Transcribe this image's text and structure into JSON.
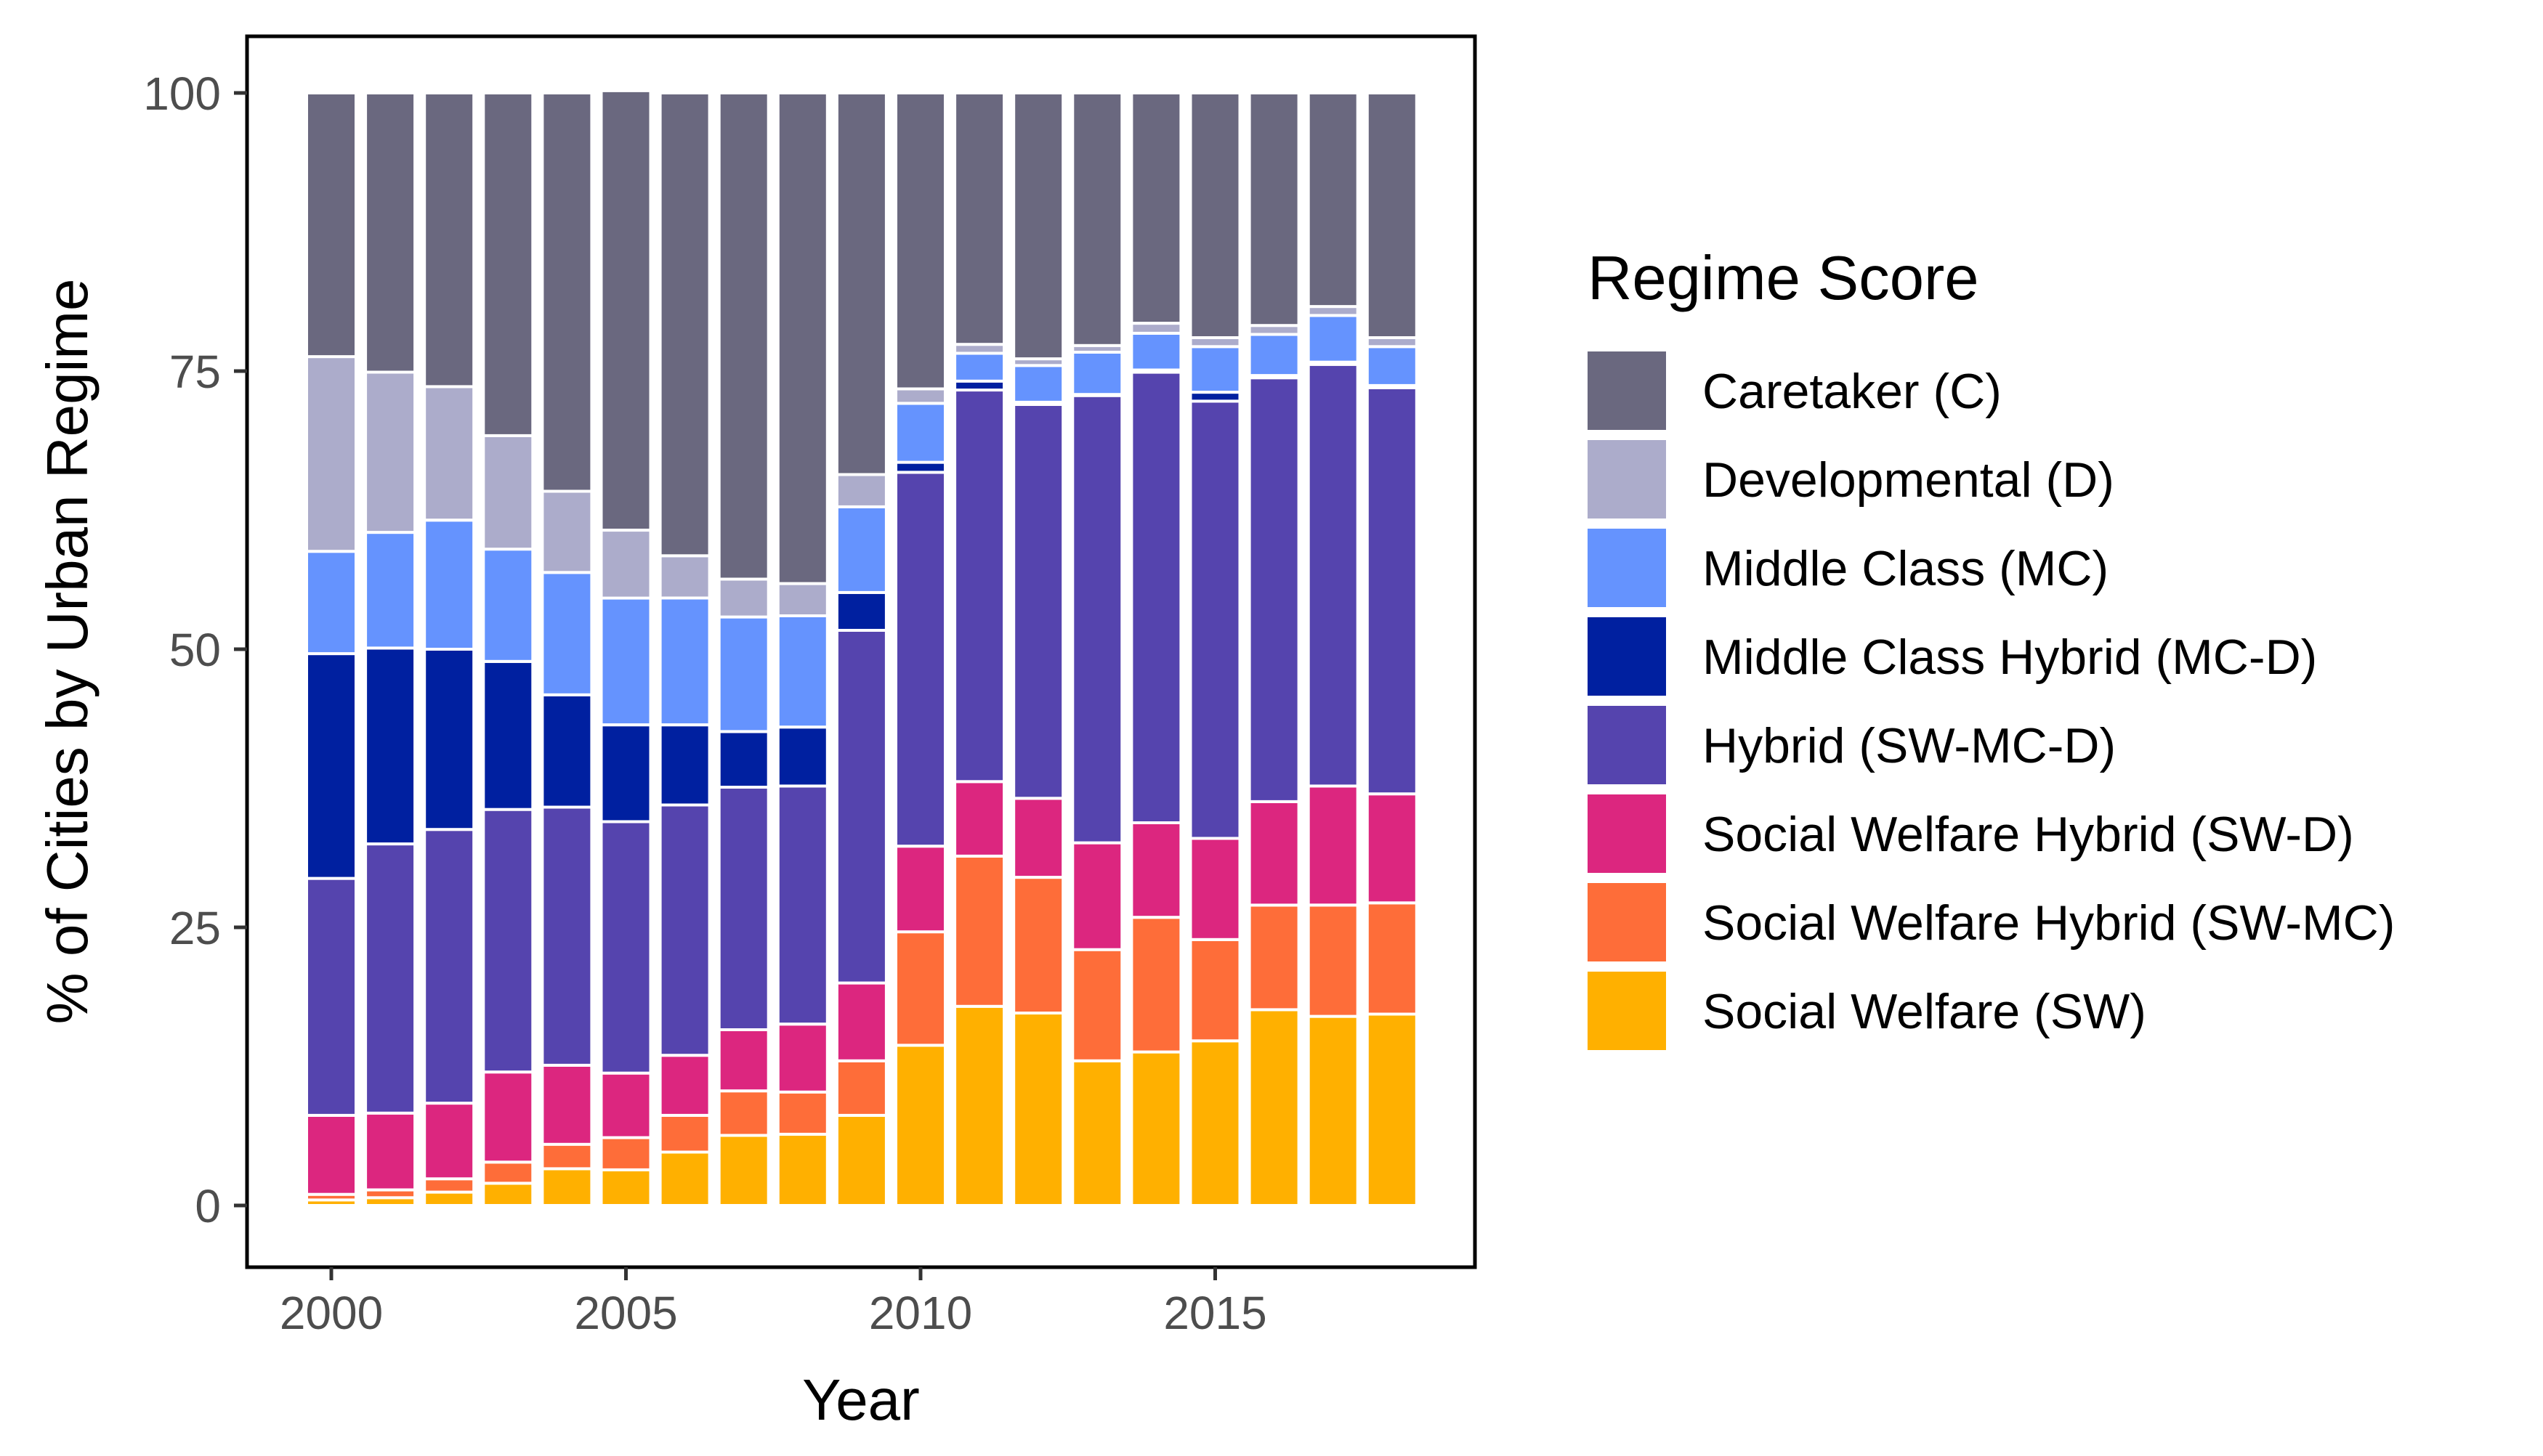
{
  "chart_data": {
    "type": "bar",
    "stacked": true,
    "xlabel": "Year",
    "ylabel": "% of Cities by Urban Regime",
    "ylim": [
      0,
      100
    ],
    "xlim": [
      1999.5,
      2018.5
    ],
    "y_ticks": [
      0,
      25,
      50,
      75,
      100
    ],
    "x_ticks": [
      2000,
      2005,
      2010,
      2015
    ],
    "y_tick_labels": [
      "0",
      "25",
      "50",
      "75",
      "100"
    ],
    "x_tick_labels": [
      "2000",
      "2005",
      "2010",
      "2015"
    ],
    "legend_title": "Regime Score",
    "legend_position": "right",
    "grid": false,
    "categories": [
      2000,
      2001,
      2002,
      2003,
      2004,
      2005,
      2006,
      2007,
      2008,
      2009,
      2010,
      2011,
      2012,
      2013,
      2014,
      2015,
      2016,
      2017,
      2018
    ],
    "series": [
      {
        "name": "Social Welfare (SW)",
        "color": "#FFB000",
        "values": [
          0.5,
          0.7,
          1.2,
          2.0,
          3.3,
          3.2,
          4.8,
          6.3,
          6.4,
          8.1,
          14.4,
          17.9,
          17.3,
          13.0,
          13.8,
          14.8,
          17.6,
          17.0,
          17.2
        ]
      },
      {
        "name": "Social Welfare Hybrid (SW-MC)",
        "color": "#FE6D39",
        "values": [
          0.5,
          0.7,
          1.2,
          1.9,
          2.2,
          2.9,
          3.3,
          4.0,
          3.8,
          4.9,
          10.2,
          13.5,
          12.2,
          10.0,
          12.1,
          9.1,
          9.4,
          10.0,
          10.0
        ]
      },
      {
        "name": "Social Welfare Hybrid (SW-D)",
        "color": "#DC267F",
        "values": [
          7.1,
          6.9,
          6.8,
          8.1,
          7.1,
          5.8,
          5.4,
          5.5,
          6.1,
          7.0,
          7.7,
          6.7,
          7.1,
          9.6,
          8.5,
          9.1,
          9.3,
          10.7,
          9.8
        ]
      },
      {
        "name": "Hybrid (SW-MC-D)",
        "color": "#5544AE",
        "values": [
          21.3,
          24.2,
          24.6,
          23.6,
          23.2,
          22.6,
          22.5,
          21.8,
          21.4,
          31.7,
          33.6,
          35.2,
          35.4,
          40.2,
          40.5,
          39.3,
          38.1,
          37.9,
          36.5
        ]
      },
      {
        "name": "Middle Class Hybrid (MC-D)",
        "color": "#0020A0",
        "values": [
          20.2,
          17.6,
          16.2,
          13.3,
          10.1,
          8.7,
          7.2,
          5.0,
          5.3,
          3.4,
          0.9,
          0.8,
          0.2,
          0.1,
          0.2,
          0.8,
          0.2,
          0.2,
          0.2
        ]
      },
      {
        "name": "Middle Class (MC)",
        "color": "#6593FE",
        "values": [
          9.2,
          10.4,
          11.6,
          10.1,
          11.0,
          11.4,
          11.4,
          10.3,
          10.0,
          7.7,
          5.3,
          2.5,
          3.3,
          3.8,
          3.3,
          4.1,
          3.7,
          4.2,
          3.5
        ]
      },
      {
        "name": "Developmental (D)",
        "color": "#ACACCB",
        "values": [
          17.5,
          14.4,
          12.0,
          10.2,
          7.3,
          6.1,
          3.8,
          3.4,
          2.9,
          2.9,
          1.3,
          0.8,
          0.6,
          0.6,
          0.9,
          0.8,
          0.8,
          0.8,
          0.8
        ]
      },
      {
        "name": "Caretaker (C)",
        "color": "#6A687F",
        "values": [
          23.7,
          25.1,
          26.4,
          30.8,
          35.8,
          39.5,
          41.6,
          43.7,
          44.1,
          34.3,
          26.6,
          22.6,
          23.9,
          22.7,
          20.7,
          22.0,
          20.9,
          19.2,
          22.0
        ]
      }
    ]
  }
}
